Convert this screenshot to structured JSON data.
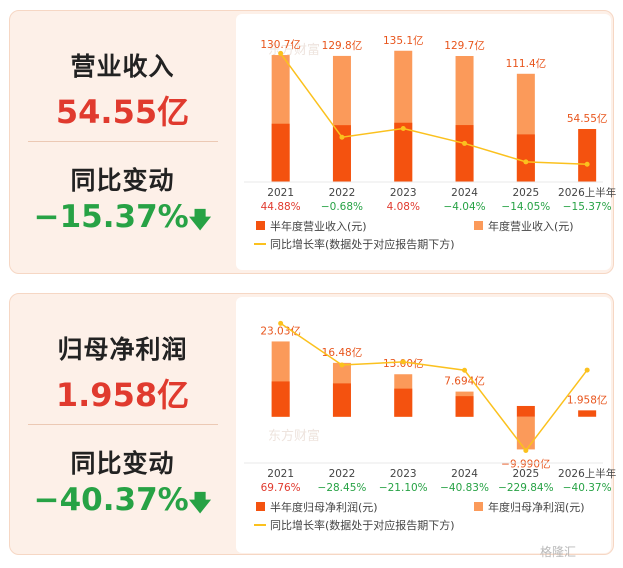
{
  "revenue": {
    "title": "营业收入",
    "value": "54.55亿",
    "change_title": "同比变动",
    "change_value": "−15.37%",
    "change_arrow": "down-arrow-icon"
  },
  "net_profit": {
    "title": "归母净利润",
    "value": "1.958亿",
    "change_title": "同比变动",
    "change_value": "−40.37%",
    "change_arrow": "down-arrow-icon"
  },
  "colors": {
    "half_year": "#f4520f",
    "annual": "#fb9a5a",
    "line": "#fbc11e",
    "positive": "#e03a2e",
    "negative": "#27a245"
  },
  "chart_data": [
    {
      "type": "bar",
      "categories": [
        "2021",
        "2022",
        "2023",
        "2024",
        "2025",
        "2026上半年"
      ],
      "series": [
        {
          "name": "半年度营业收入(元)",
          "values": [
            60.0,
            58.5,
            61.0,
            58.6,
            49.0,
            54.55
          ]
        },
        {
          "name": "年度营业收入(元)",
          "values": [
            130.7,
            129.8,
            135.1,
            129.7,
            111.4,
            null
          ]
        }
      ],
      "bar_labels": [
        "130.7亿",
        "129.8亿",
        "135.1亿",
        "129.7亿",
        "111.4亿",
        "54.55亿"
      ],
      "growth": {
        "name": "同比增长率(数据处于对应报告期下方)",
        "values": [
          44.88,
          -0.68,
          4.08,
          -4.04,
          -14.05,
          -15.37
        ],
        "labels": [
          "44.88%",
          "−0.68%",
          "4.08%",
          "−4.04%",
          "−14.05%",
          "−15.37%"
        ]
      },
      "legend": [
        "半年度营业收入(元)",
        "年度营业收入(元)",
        "同比增长率(数据处于对应报告期下方)"
      ],
      "legend_position": "bottom",
      "ylim": [
        0,
        140
      ],
      "growth_ylim": [
        -25,
        50
      ]
    },
    {
      "type": "bar",
      "categories": [
        "2021",
        "2022",
        "2023",
        "2024",
        "2025",
        "2026上半年"
      ],
      "series": [
        {
          "name": "半年度归母净利润(元)",
          "values": [
            10.8,
            10.2,
            8.6,
            6.3,
            3.3,
            1.958
          ]
        },
        {
          "name": "年度归母净利润(元)",
          "values": [
            23.03,
            16.48,
            13.0,
            7.694,
            -9.99,
            null
          ]
        }
      ],
      "bar_labels": [
        "23.03亿",
        "16.48亿",
        "13.00亿",
        "7.694亿",
        "−9.990亿",
        "1.958亿"
      ],
      "growth": {
        "name": "同比增长率(数据处于对应报告期下方)",
        "values": [
          69.76,
          -28.45,
          -21.1,
          -40.83,
          -229.84,
          -40.37
        ],
        "labels": [
          "69.76%",
          "−28.45%",
          "−21.10%",
          "−40.83%",
          "−229.84%",
          "−40.37%"
        ]
      },
      "legend": [
        "半年度归母净利润(元)",
        "年度归母净利润(元)",
        "同比增长率(数据处于对应报告期下方)"
      ],
      "legend_position": "bottom",
      "ylim": [
        -12,
        25
      ],
      "growth_ylim": [
        -250,
        80
      ]
    }
  ],
  "chart_watermark": "东方财富",
  "watermark": "格隆汇"
}
